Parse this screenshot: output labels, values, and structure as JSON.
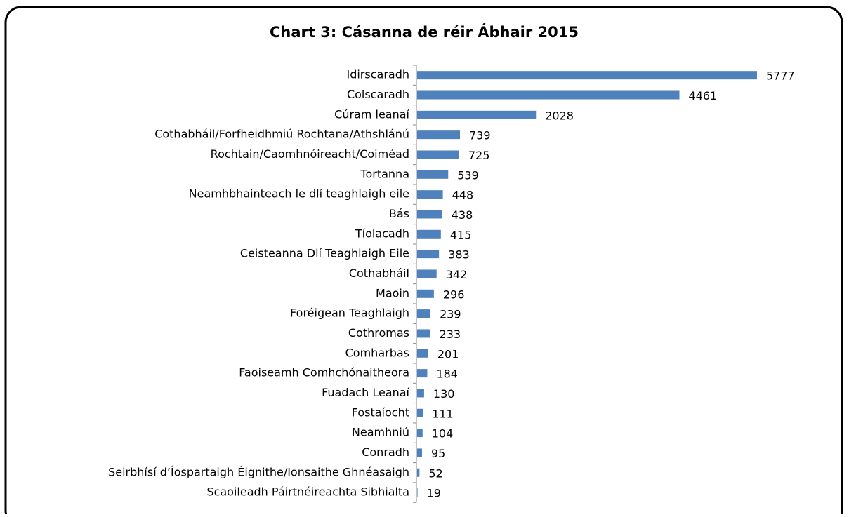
{
  "chart_data": {
    "type": "bar",
    "orientation": "horizontal",
    "title": "Chart 3: Cásanna de réir Ábhair 2015",
    "categories": [
      "Idirscaradh",
      "Colscaradh",
      "Cúram leanaí",
      "Cothabháil/Forfheidhmiú Rochtana/Athshlánú",
      "Rochtain/Caomhnóireacht/Coiméad",
      "Tortanna",
      "Neamhbhainteach le dlí teaghlaigh eile",
      "Bás",
      "Tíolacadh",
      "Ceisteanna Dlí Teaghlaigh Eile",
      "Cothabháil",
      "Maoin",
      "Foréigean Teaghlaigh",
      "Cothromas",
      "Comharbas",
      "Faoiseamh Comhchónaitheora",
      "Fuadach Leanaí",
      "Fostaíocht",
      "Neamhniú",
      "Conradh",
      "Seirbhísí d’Íospartaigh Éignithe/Ionsaithe Ghnéasaigh",
      "Scaoileadh Páirtnéireachta Sibhialta"
    ],
    "values": [
      5777,
      4461,
      2028,
      739,
      725,
      539,
      448,
      438,
      415,
      383,
      342,
      296,
      239,
      233,
      201,
      184,
      130,
      111,
      104,
      95,
      52,
      19
    ],
    "color": "#4f81bd"
  }
}
